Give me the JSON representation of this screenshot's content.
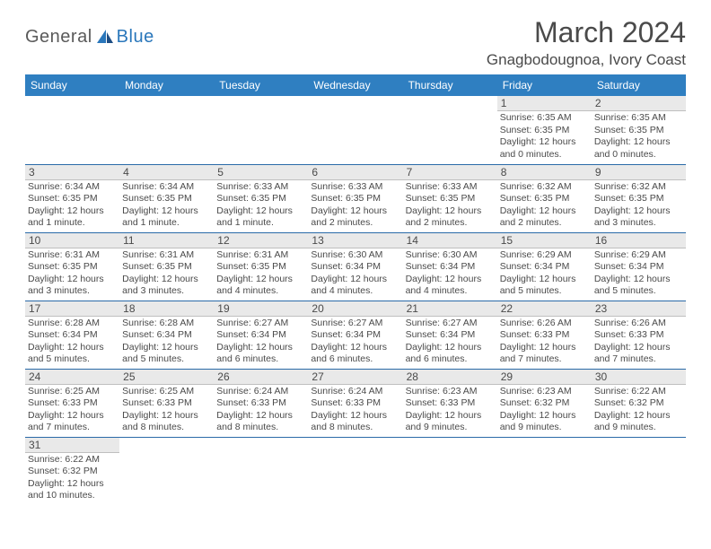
{
  "logo": {
    "text1": "General",
    "text2": "Blue"
  },
  "header": {
    "month_title": "March 2024",
    "location": "Gnagbodougnoa, Ivory Coast"
  },
  "colors": {
    "header_bg": "#2f7fc1",
    "header_text": "#ffffff",
    "daynum_bg": "#e9e9e9",
    "daynum_border": "#bfbfbf",
    "row_border": "#2a6aa8",
    "text": "#4a4a4a",
    "logo_blue": "#2a77bb"
  },
  "weekdays": [
    "Sunday",
    "Monday",
    "Tuesday",
    "Wednesday",
    "Thursday",
    "Friday",
    "Saturday"
  ],
  "weeks": [
    [
      null,
      null,
      null,
      null,
      null,
      {
        "n": "1",
        "sr": "6:35 AM",
        "ss": "6:35 PM",
        "dl": "12 hours and 0 minutes."
      },
      {
        "n": "2",
        "sr": "6:35 AM",
        "ss": "6:35 PM",
        "dl": "12 hours and 0 minutes."
      }
    ],
    [
      {
        "n": "3",
        "sr": "6:34 AM",
        "ss": "6:35 PM",
        "dl": "12 hours and 1 minute."
      },
      {
        "n": "4",
        "sr": "6:34 AM",
        "ss": "6:35 PM",
        "dl": "12 hours and 1 minute."
      },
      {
        "n": "5",
        "sr": "6:33 AM",
        "ss": "6:35 PM",
        "dl": "12 hours and 1 minute."
      },
      {
        "n": "6",
        "sr": "6:33 AM",
        "ss": "6:35 PM",
        "dl": "12 hours and 2 minutes."
      },
      {
        "n": "7",
        "sr": "6:33 AM",
        "ss": "6:35 PM",
        "dl": "12 hours and 2 minutes."
      },
      {
        "n": "8",
        "sr": "6:32 AM",
        "ss": "6:35 PM",
        "dl": "12 hours and 2 minutes."
      },
      {
        "n": "9",
        "sr": "6:32 AM",
        "ss": "6:35 PM",
        "dl": "12 hours and 3 minutes."
      }
    ],
    [
      {
        "n": "10",
        "sr": "6:31 AM",
        "ss": "6:35 PM",
        "dl": "12 hours and 3 minutes."
      },
      {
        "n": "11",
        "sr": "6:31 AM",
        "ss": "6:35 PM",
        "dl": "12 hours and 3 minutes."
      },
      {
        "n": "12",
        "sr": "6:31 AM",
        "ss": "6:35 PM",
        "dl": "12 hours and 4 minutes."
      },
      {
        "n": "13",
        "sr": "6:30 AM",
        "ss": "6:34 PM",
        "dl": "12 hours and 4 minutes."
      },
      {
        "n": "14",
        "sr": "6:30 AM",
        "ss": "6:34 PM",
        "dl": "12 hours and 4 minutes."
      },
      {
        "n": "15",
        "sr": "6:29 AM",
        "ss": "6:34 PM",
        "dl": "12 hours and 5 minutes."
      },
      {
        "n": "16",
        "sr": "6:29 AM",
        "ss": "6:34 PM",
        "dl": "12 hours and 5 minutes."
      }
    ],
    [
      {
        "n": "17",
        "sr": "6:28 AM",
        "ss": "6:34 PM",
        "dl": "12 hours and 5 minutes."
      },
      {
        "n": "18",
        "sr": "6:28 AM",
        "ss": "6:34 PM",
        "dl": "12 hours and 5 minutes."
      },
      {
        "n": "19",
        "sr": "6:27 AM",
        "ss": "6:34 PM",
        "dl": "12 hours and 6 minutes."
      },
      {
        "n": "20",
        "sr": "6:27 AM",
        "ss": "6:34 PM",
        "dl": "12 hours and 6 minutes."
      },
      {
        "n": "21",
        "sr": "6:27 AM",
        "ss": "6:34 PM",
        "dl": "12 hours and 6 minutes."
      },
      {
        "n": "22",
        "sr": "6:26 AM",
        "ss": "6:33 PM",
        "dl": "12 hours and 7 minutes."
      },
      {
        "n": "23",
        "sr": "6:26 AM",
        "ss": "6:33 PM",
        "dl": "12 hours and 7 minutes."
      }
    ],
    [
      {
        "n": "24",
        "sr": "6:25 AM",
        "ss": "6:33 PM",
        "dl": "12 hours and 7 minutes."
      },
      {
        "n": "25",
        "sr": "6:25 AM",
        "ss": "6:33 PM",
        "dl": "12 hours and 8 minutes."
      },
      {
        "n": "26",
        "sr": "6:24 AM",
        "ss": "6:33 PM",
        "dl": "12 hours and 8 minutes."
      },
      {
        "n": "27",
        "sr": "6:24 AM",
        "ss": "6:33 PM",
        "dl": "12 hours and 8 minutes."
      },
      {
        "n": "28",
        "sr": "6:23 AM",
        "ss": "6:33 PM",
        "dl": "12 hours and 9 minutes."
      },
      {
        "n": "29",
        "sr": "6:23 AM",
        "ss": "6:32 PM",
        "dl": "12 hours and 9 minutes."
      },
      {
        "n": "30",
        "sr": "6:22 AM",
        "ss": "6:32 PM",
        "dl": "12 hours and 9 minutes."
      }
    ],
    [
      {
        "n": "31",
        "sr": "6:22 AM",
        "ss": "6:32 PM",
        "dl": "12 hours and 10 minutes."
      },
      null,
      null,
      null,
      null,
      null,
      null
    ]
  ],
  "labels": {
    "sunrise": "Sunrise:",
    "sunset": "Sunset:",
    "daylight": "Daylight:"
  }
}
